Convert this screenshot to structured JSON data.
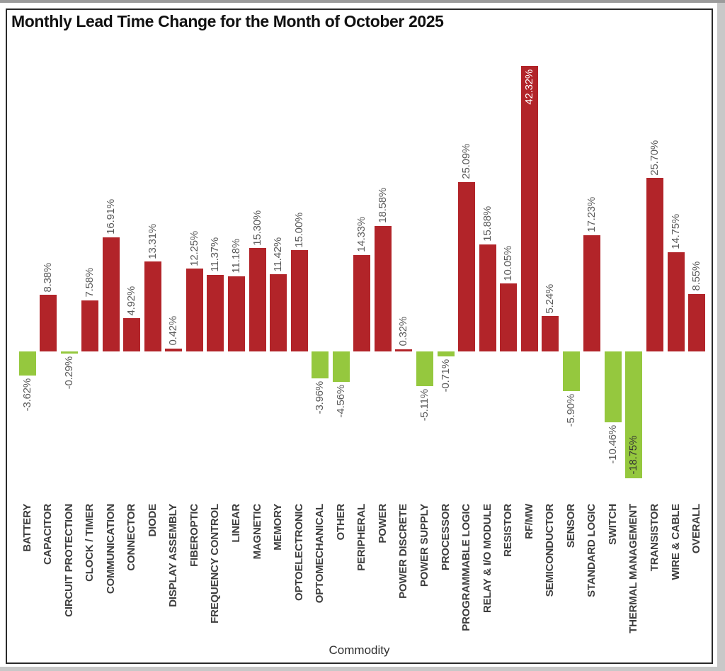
{
  "title": "Monthly Lead Time Change for the Month of October 2025",
  "chart_data": {
    "type": "bar",
    "title": "Monthly Lead Time Change for the Month of October 2025",
    "xlabel": "Commodity",
    "ylabel": "",
    "ylim": [
      -20,
      45
    ],
    "grid": false,
    "legend": "none",
    "bar_color_positive": "#b22429",
    "bar_color_negative": "#95c83e",
    "value_label_color": "#595959",
    "inside_label_color_positive": "#ffffff",
    "inside_label_color_negative": "#333333",
    "categories": [
      "BATTERY",
      "CAPACITOR",
      "CIRCUIT PROTECTION",
      "CLOCK / TIMER",
      "COMMUNICATION",
      "CONNECTOR",
      "DIODE",
      "DISPLAY ASSEMBLY",
      "FIBEROPTIC",
      "FREQUENCY CONTROL",
      "LINEAR",
      "MAGNETIC",
      "MEMORY",
      "OPTOELECTRONIC",
      "OPTOMECHANICAL",
      "OTHER",
      "PERIPHERAL",
      "POWER",
      "POWER DISCRETE",
      "POWER SUPPLY",
      "PROCESSOR",
      "PROGRAMMABLE LOGIC",
      "RELAY & I/O MODULE",
      "RESISTOR",
      "RF/MW",
      "SEMICONDUCTOR",
      "SENSOR",
      "STANDARD LOGIC",
      "SWITCH",
      "THERMAL MANAGEMENT",
      "TRANSISTOR",
      "WIRE & CABLE",
      "OVERALL"
    ],
    "values": [
      -3.62,
      8.38,
      -0.29,
      7.58,
      16.91,
      4.92,
      13.31,
      0.42,
      12.25,
      11.37,
      11.18,
      15.3,
      11.42,
      15.0,
      -3.96,
      -4.56,
      14.33,
      18.58,
      0.32,
      -5.11,
      -0.71,
      25.09,
      15.88,
      10.05,
      42.32,
      5.24,
      -5.9,
      17.23,
      -10.46,
      -18.75,
      25.7,
      14.75,
      8.55
    ],
    "value_labels": [
      "-3.62%",
      "8.38%",
      "-0.29%",
      "7.58%",
      "16.91%",
      "4.92%",
      "13.31%",
      "0.42%",
      "12.25%",
      "11.37%",
      "11.18%",
      "15.30%",
      "11.42%",
      "15.00%",
      "-3.96%",
      "-4.56%",
      "14.33%",
      "18.58%",
      "0.32%",
      "-5.11%",
      "-0.71%",
      "25.09%",
      "15.88%",
      "10.05%",
      "42.32%",
      "5.24%",
      "-5.90%",
      "17.23%",
      "-10.46%",
      "-18.75%",
      "25.70%",
      "14.75%",
      "8.55%"
    ],
    "inside_label_indices": [
      24,
      29
    ]
  }
}
